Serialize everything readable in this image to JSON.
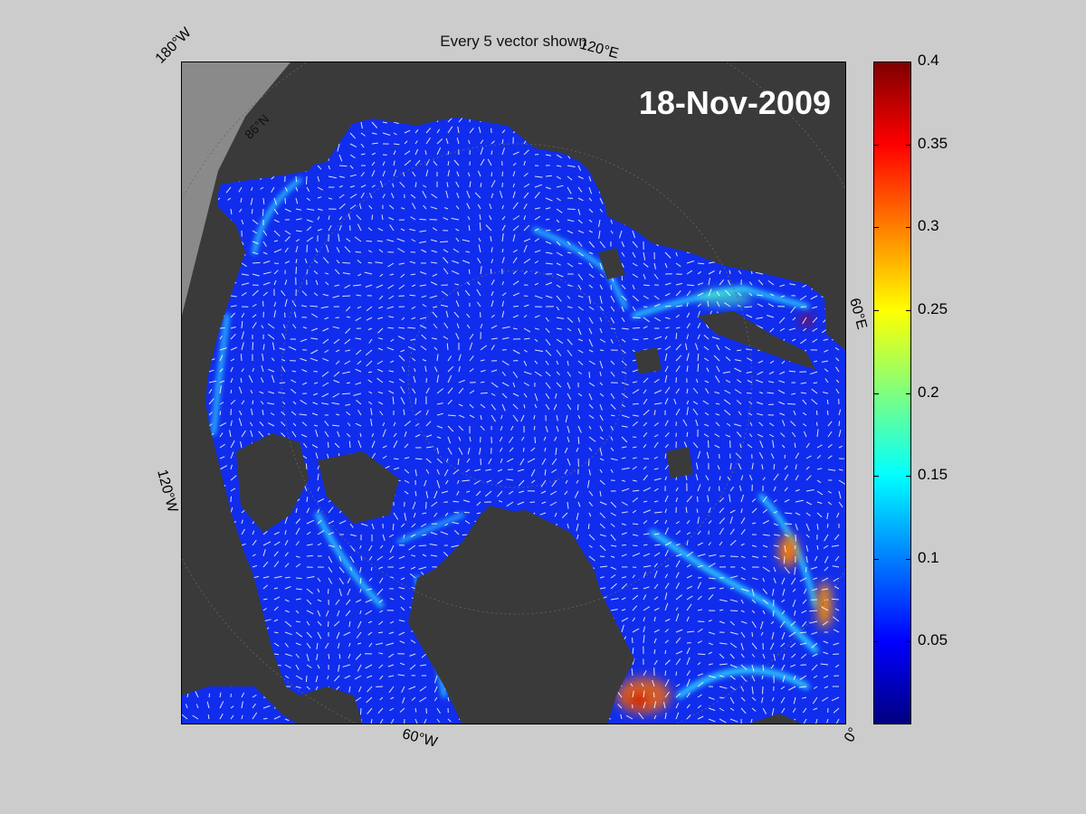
{
  "title": "Every 5 vector shown",
  "date_stamp": "18-Nov-2009",
  "map_labels": {
    "lon_180w": "180°W",
    "lon_120e": "120°E",
    "lon_60e": "60°E",
    "lon_120w": "120°W",
    "lon_60w": "60°W",
    "lon_0": "0°",
    "lat_86n": "86°N"
  },
  "colorbar": {
    "colormap": "jet",
    "range": [
      0,
      0.4
    ],
    "ticks": [
      "0.4",
      "0.35",
      "0.3",
      "0.25",
      "0.2",
      "0.15",
      "0.1",
      "0.05"
    ],
    "tick_values": [
      0.4,
      0.35,
      0.3,
      0.25,
      0.2,
      0.15,
      0.1,
      0.05
    ]
  },
  "colors": {
    "background": "#cccccc",
    "land": "#3a3a3a",
    "outside_grid": "#8a8a8a",
    "ice_base": "#1a3aff",
    "vectors": "#ffffff"
  }
}
